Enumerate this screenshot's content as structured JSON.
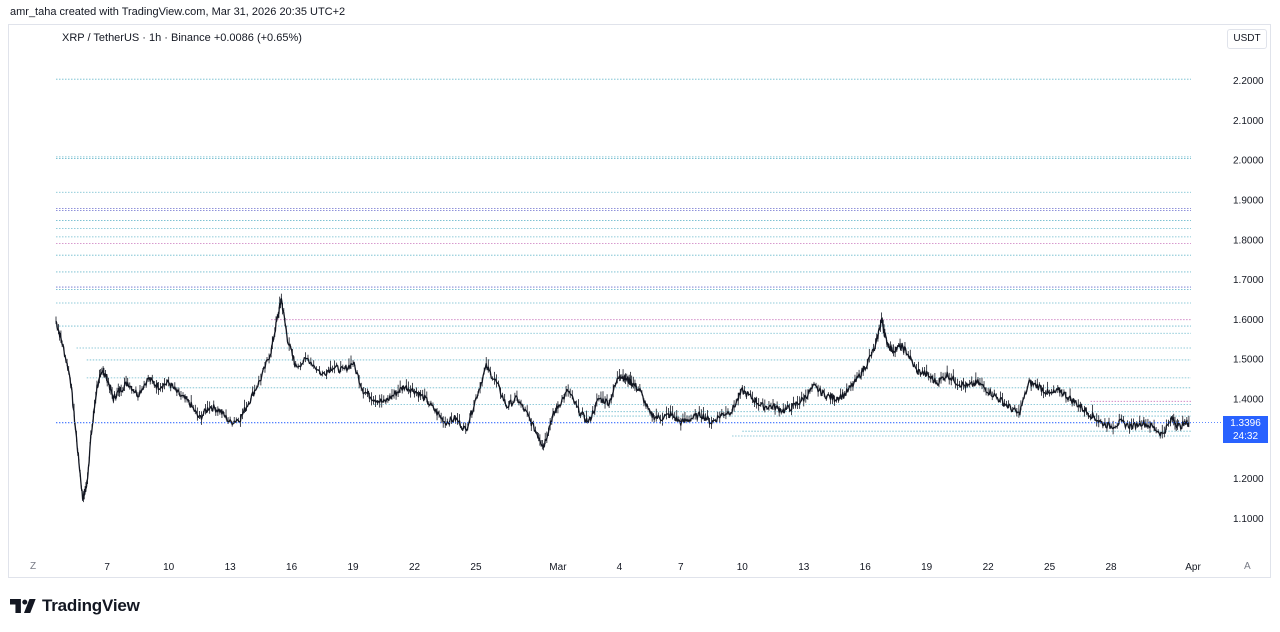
{
  "header": {
    "author_line": "amr_taha created with TradingView.com, Mar 31, 2026 20:35 UTC+2",
    "symbol_line": "XRP / TetherUS · 1h · Binance  +0.0086 (+0.65%)"
  },
  "price_axis": {
    "currency_button": "USDT",
    "last_price": "1.3396",
    "countdown": "24:32",
    "last_price_color": "#2962ff"
  },
  "time_axis": {
    "left_corner": "Z",
    "right_corner": "A"
  },
  "footer": {
    "brand": "TradingView",
    "logo_icon": "tradingview-logo-icon"
  },
  "chart_data": {
    "type": "line",
    "symbol": "XRP / TetherUS",
    "interval": "1h",
    "exchange": "Binance",
    "change": "+0.0086 (+0.65%)",
    "ylim": [
      1.05,
      2.25
    ],
    "y_ticks": [
      "2.2000",
      "2.1000",
      "2.0000",
      "1.9000",
      "1.8000",
      "1.7000",
      "1.6000",
      "1.5000",
      "1.4000",
      "1.3000",
      "1.2000",
      "1.1000"
    ],
    "x_ticks": [
      "7",
      "10",
      "13",
      "16",
      "19",
      "22",
      "25",
      "Mar",
      "4",
      "7",
      "10",
      "13",
      "16",
      "19",
      "22",
      "25",
      "28",
      "Apr"
    ],
    "x_tick_days": [
      7,
      10,
      13,
      16,
      19,
      22,
      25,
      29,
      32,
      35,
      38,
      41,
      44,
      47,
      50,
      53,
      56,
      60
    ],
    "x_range_days": [
      4.5,
      60
    ],
    "series": [
      {
        "values_x_days": [
          4.5,
          4.8,
          5.2,
          5.5,
          5.8,
          6.0,
          6.2,
          6.5,
          6.8,
          7.0,
          7.3,
          7.6,
          8.0,
          8.5,
          9.0,
          9.5,
          10.0,
          10.5,
          11.0,
          11.5,
          12.0,
          12.5,
          13.0,
          13.5,
          14.0,
          14.5,
          15.0,
          15.3,
          15.5,
          15.8,
          16.2,
          16.8,
          17.5,
          18.0,
          18.5,
          19.0,
          19.5,
          20.0,
          20.5,
          21.0,
          21.5,
          22.0,
          22.5,
          23.0,
          23.5,
          24.0,
          24.5,
          25.0,
          25.5,
          26.0,
          26.5,
          27.0,
          27.5,
          28.0,
          28.3,
          28.7,
          29.0,
          29.5,
          30.0,
          30.5,
          31.0,
          31.5,
          32.0,
          32.3,
          32.6,
          33.0,
          33.5,
          34.0,
          34.5,
          35.0,
          35.5,
          36.0,
          36.5,
          37.0,
          37.5,
          38.0,
          38.5,
          39.0,
          39.5,
          40.0,
          40.5,
          41.0,
          41.5,
          42.0,
          42.5,
          43.0,
          43.5,
          44.0,
          44.5,
          44.8,
          45.0,
          45.3,
          45.7,
          46.0,
          46.5,
          47.0,
          47.5,
          48.0,
          48.5,
          49.0,
          49.5,
          50.0,
          50.5,
          51.0,
          51.5,
          52.0,
          52.5,
          53.0,
          53.5,
          54.0,
          54.5,
          55.0,
          55.5,
          56.0,
          56.5,
          57.0,
          57.5,
          58.0,
          58.5,
          59.0,
          59.3,
          59.8
        ],
        "values_close": [
          1.595,
          1.54,
          1.45,
          1.3,
          1.15,
          1.18,
          1.3,
          1.43,
          1.47,
          1.45,
          1.4,
          1.42,
          1.44,
          1.41,
          1.45,
          1.43,
          1.44,
          1.41,
          1.39,
          1.35,
          1.38,
          1.37,
          1.34,
          1.35,
          1.4,
          1.45,
          1.52,
          1.6,
          1.65,
          1.55,
          1.48,
          1.5,
          1.46,
          1.48,
          1.47,
          1.49,
          1.42,
          1.4,
          1.39,
          1.41,
          1.43,
          1.42,
          1.4,
          1.37,
          1.34,
          1.35,
          1.32,
          1.4,
          1.48,
          1.44,
          1.38,
          1.4,
          1.36,
          1.31,
          1.28,
          1.35,
          1.38,
          1.42,
          1.37,
          1.34,
          1.4,
          1.39,
          1.46,
          1.45,
          1.44,
          1.42,
          1.36,
          1.35,
          1.36,
          1.34,
          1.35,
          1.36,
          1.34,
          1.36,
          1.37,
          1.42,
          1.4,
          1.38,
          1.38,
          1.37,
          1.38,
          1.4,
          1.43,
          1.41,
          1.4,
          1.41,
          1.44,
          1.48,
          1.53,
          1.6,
          1.55,
          1.52,
          1.53,
          1.52,
          1.47,
          1.46,
          1.44,
          1.46,
          1.44,
          1.43,
          1.44,
          1.42,
          1.4,
          1.38,
          1.36,
          1.44,
          1.43,
          1.41,
          1.42,
          1.4,
          1.38,
          1.36,
          1.34,
          1.33,
          1.34,
          1.33,
          1.34,
          1.33,
          1.31,
          1.35,
          1.33,
          1.34
        ]
      }
    ],
    "horizontal_levels": [
      {
        "price": 2.202,
        "color": "#5db3c7",
        "x_start_day": 4.5
      },
      {
        "price": 2.007,
        "color": "#5db3c7",
        "x_start_day": 4.5
      },
      {
        "price": 2.003,
        "color": "#5db3c7",
        "x_start_day": 4.5
      },
      {
        "price": 1.918,
        "color": "#5db3c7",
        "x_start_day": 4.5
      },
      {
        "price": 1.877,
        "color": "#5a5ec9",
        "x_start_day": 4.5
      },
      {
        "price": 1.872,
        "color": "#5a5ec9",
        "x_start_day": 4.5
      },
      {
        "price": 1.847,
        "color": "#5db3c7",
        "x_start_day": 4.5
      },
      {
        "price": 1.827,
        "color": "#5db3c7",
        "x_start_day": 4.5
      },
      {
        "price": 1.806,
        "color": "#5db3c7",
        "x_start_day": 4.5
      },
      {
        "price": 1.789,
        "color": "#c56bb8",
        "x_start_day": 4.5
      },
      {
        "price": 1.76,
        "color": "#5db3c7",
        "x_start_day": 4.5
      },
      {
        "price": 1.718,
        "color": "#5db3c7",
        "x_start_day": 4.5
      },
      {
        "price": 1.68,
        "color": "#5a5ec9",
        "x_start_day": 4.5
      },
      {
        "price": 1.674,
        "color": "#5db3c7",
        "x_start_day": 4.5
      },
      {
        "price": 1.64,
        "color": "#5db3c7",
        "x_start_day": 4.5
      },
      {
        "price": 1.598,
        "color": "#c56bb8",
        "x_start_day": 15.0
      },
      {
        "price": 1.582,
        "color": "#5db3c7",
        "x_start_day": 4.5
      },
      {
        "price": 1.564,
        "color": "#5db3c7",
        "x_start_day": 15.5
      },
      {
        "price": 1.527,
        "color": "#5db3c7",
        "x_start_day": 5.5
      },
      {
        "price": 1.497,
        "color": "#5db3c7",
        "x_start_day": 6.0
      },
      {
        "price": 1.452,
        "color": "#5db3c7",
        "x_start_day": 6.0
      },
      {
        "price": 1.427,
        "color": "#5db3c7",
        "x_start_day": 10.0
      },
      {
        "price": 1.393,
        "color": "#c56bb8",
        "x_start_day": 55.0
      },
      {
        "price": 1.385,
        "color": "#5db3c7",
        "x_start_day": 20.0
      },
      {
        "price": 1.367,
        "color": "#5db3c7",
        "x_start_day": 30.0
      },
      {
        "price": 1.356,
        "color": "#5db3c7",
        "x_start_day": 30.0
      },
      {
        "price": 1.339,
        "color": "#2962ff",
        "x_start_day": 4.5
      },
      {
        "price": 1.318,
        "color": "#5db3c7",
        "x_start_day": 38.0
      },
      {
        "price": 1.306,
        "color": "#5db3c7",
        "x_start_day": 37.5
      }
    ]
  }
}
